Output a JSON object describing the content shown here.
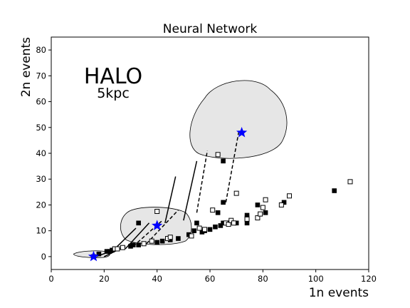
{
  "chart_data": {
    "type": "scatter",
    "title": "Neural Network",
    "xlabel": "1n events",
    "ylabel": "2n events",
    "xlim": [
      0,
      120
    ],
    "ylim": [
      -5,
      85
    ],
    "xticks": [
      "0",
      "20",
      "40",
      "60",
      "80",
      "100",
      "120"
    ],
    "yticks": [
      "0",
      "10",
      "20",
      "30",
      "40",
      "50",
      "60",
      "70",
      "80"
    ],
    "grid": false,
    "annotations": [
      {
        "text": "HALO",
        "x": 23,
        "y": 67
      },
      {
        "text": "5kpc",
        "x": 23,
        "y": 60
      }
    ],
    "series": [
      {
        "marker": "filled-square",
        "color": "#000000",
        "points": [
          [
            16,
            0
          ],
          [
            18,
            1
          ],
          [
            21,
            2
          ],
          [
            22,
            2
          ],
          [
            23,
            2.5
          ],
          [
            30,
            4
          ],
          [
            31,
            4.5
          ],
          [
            33,
            4.5
          ],
          [
            33,
            13
          ],
          [
            40,
            5.5
          ],
          [
            42,
            6
          ],
          [
            45,
            6.5
          ],
          [
            48,
            7
          ],
          [
            52,
            8.5
          ],
          [
            54,
            10
          ],
          [
            55,
            13
          ],
          [
            57,
            9.5
          ],
          [
            58,
            10
          ],
          [
            60,
            10.5
          ],
          [
            62,
            11.5
          ],
          [
            63,
            17
          ],
          [
            64,
            12
          ],
          [
            65,
            13
          ],
          [
            65,
            21
          ],
          [
            67,
            13
          ],
          [
            65,
            37
          ],
          [
            70,
            13
          ],
          [
            74,
            13
          ],
          [
            74,
            15
          ],
          [
            74,
            16
          ],
          [
            78,
            20
          ],
          [
            81,
            17
          ],
          [
            88,
            21
          ],
          [
            107,
            25.5
          ]
        ]
      },
      {
        "marker": "open-square",
        "color": "#000000",
        "points": [
          [
            24,
            3
          ],
          [
            25,
            3
          ],
          [
            27,
            3.5
          ],
          [
            35,
            5
          ],
          [
            38,
            6
          ],
          [
            40,
            17.5
          ],
          [
            44,
            7
          ],
          [
            45,
            7.5
          ],
          [
            53,
            8
          ],
          [
            56,
            11
          ],
          [
            58,
            10.5
          ],
          [
            61,
            18
          ],
          [
            63,
            39.5
          ],
          [
            66,
            13
          ],
          [
            67,
            12.5
          ],
          [
            68,
            14
          ],
          [
            69,
            13
          ],
          [
            70,
            24.5
          ],
          [
            74,
            14.5
          ],
          [
            78,
            15
          ],
          [
            79,
            16.5
          ],
          [
            80,
            19
          ],
          [
            81,
            22
          ],
          [
            87,
            20
          ],
          [
            90,
            23.5
          ],
          [
            113,
            29
          ]
        ]
      },
      {
        "marker": "star",
        "color": "#0000ff",
        "points": [
          [
            16,
            0
          ],
          [
            40,
            12
          ],
          [
            72,
            48
          ]
        ]
      }
    ],
    "regions": [
      {
        "shape": "contour",
        "fill": "#e6e6e6",
        "center": [
          16,
          1
        ]
      },
      {
        "shape": "contour",
        "fill": "#e6e6e6",
        "center": [
          40,
          11
        ]
      },
      {
        "shape": "contour",
        "fill": "#e6e6e6",
        "center": [
          72,
          47
        ]
      }
    ]
  }
}
